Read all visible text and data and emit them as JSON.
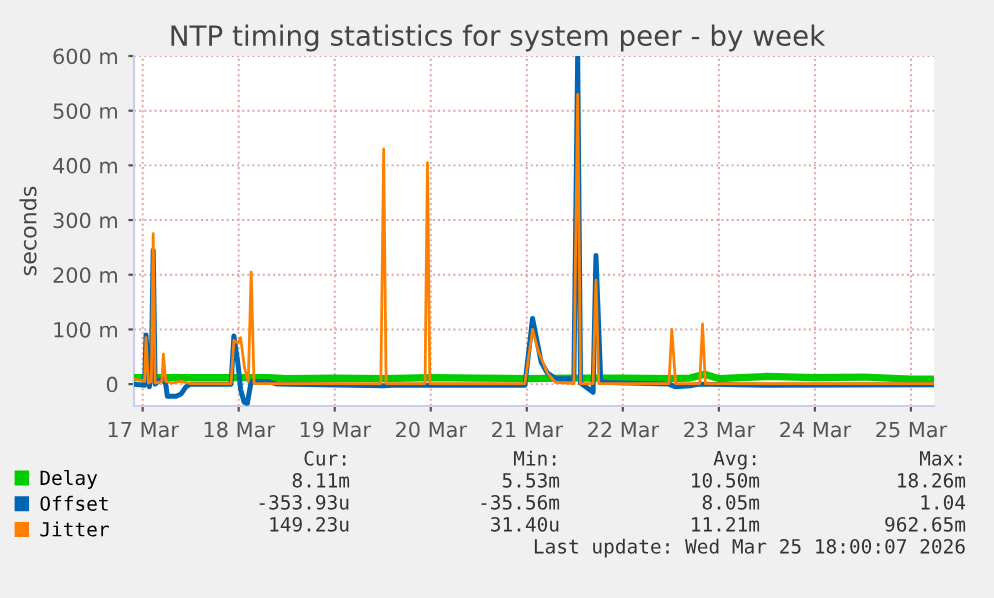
{
  "chart_data": {
    "type": "line",
    "title": "NTP timing statistics for system peer - by week",
    "ylabel": "seconds",
    "xlim": [
      "2026-03-16T21:50",
      "2026-03-25T05:46"
    ],
    "xticks": [
      {
        "value": "2026-03-17",
        "label": "17 Mar"
      },
      {
        "value": "2026-03-18",
        "label": "18 Mar"
      },
      {
        "value": "2026-03-19",
        "label": "19 Mar"
      },
      {
        "value": "2026-03-20",
        "label": "20 Mar"
      },
      {
        "value": "2026-03-21",
        "label": "21 Mar"
      },
      {
        "value": "2026-03-22",
        "label": "22 Mar"
      },
      {
        "value": "2026-03-23",
        "label": "23 Mar"
      },
      {
        "value": "2026-03-24",
        "label": "24 Mar"
      },
      {
        "value": "2026-03-25",
        "label": "25 Mar"
      }
    ],
    "ylim": [
      -40,
      600
    ],
    "yticks": [
      0,
      {
        "value": 100,
        "label": "100 m"
      },
      {
        "value": 200,
        "label": "200 m"
      },
      {
        "value": 300,
        "label": "300 m"
      },
      {
        "value": 400,
        "label": "400 m"
      },
      {
        "value": 500,
        "label": "500 m"
      },
      {
        "value": 600,
        "label": "600 m"
      }
    ],
    "grid": true,
    "legend": "bottom",
    "series": [
      {
        "name": "Delay",
        "color": "#00cc00",
        "x": [
          "2026-03-16T21:50",
          "2026-03-17T12:00",
          "2026-03-18T07:12",
          "2026-03-18T12:00",
          "2026-03-19T00:00",
          "2026-03-19T12:00",
          "2026-03-20T00:00",
          "2026-03-20T12:00",
          "2026-03-21T00:00",
          "2026-03-21T12:00",
          "2026-03-22T00:00",
          "2026-03-22T12:00",
          "2026-03-22T16:48",
          "2026-03-22T20:24",
          "2026-03-23T00:00",
          "2026-03-23T12:00",
          "2026-03-24T00:00",
          "2026-03-24T12:00",
          "2026-03-25T00:00",
          "2026-03-25T05:46"
        ],
        "values": [
          12,
          12,
          12,
          10,
          11,
          10,
          12,
          11,
          10,
          11,
          11,
          10,
          11,
          18,
          10,
          14,
          12,
          13,
          9,
          9
        ]
      },
      {
        "name": "Offset",
        "color": "#0066b3",
        "x": [
          "2026-03-16T21:50",
          "2026-03-17T00:29",
          "2026-03-17T00:50",
          "2026-03-17T01:41",
          "2026-03-17T02:10",
          "2026-03-17T02:38",
          "2026-03-17T03:07",
          "2026-03-17T04:48",
          "2026-03-17T05:46",
          "2026-03-17T06:10",
          "2026-03-17T08:24",
          "2026-03-17T09:36",
          "2026-03-17T10:48",
          "2026-03-17T12:00",
          "2026-03-17T22:05",
          "2026-03-17T22:48",
          "2026-03-17T23:46",
          "2026-03-18T00:29",
          "2026-03-18T01:21",
          "2026-03-18T02:10",
          "2026-03-18T03:07",
          "2026-03-18T07:12",
          "2026-03-18T09:36",
          "2026-03-19T12:00",
          "2026-03-19T14:24",
          "2026-03-20T23:31",
          "2026-03-21T01:26",
          "2026-03-21T03:36",
          "2026-03-21T05:10",
          "2026-03-21T07:12",
          "2026-03-21T11:46",
          "2026-03-21T12:43",
          "2026-03-21T13:26",
          "2026-03-21T16:34",
          "2026-03-21T17:17",
          "2026-03-21T18:29",
          "2026-03-21T20:24",
          "2026-03-22T11:31",
          "2026-03-22T13:12",
          "2026-03-22T16:48",
          "2026-03-22T19:12",
          "2026-03-23T12:00",
          "2026-03-25T05:46"
        ],
        "values": [
          0,
          -2,
          90,
          -5,
          30,
          245,
          0,
          10,
          0,
          -22,
          -22,
          -18,
          -5,
          0,
          0,
          88,
          40,
          -10,
          -33,
          -35,
          5,
          5,
          0,
          -3,
          -2,
          -2,
          120,
          40,
          20,
          10,
          10,
          600,
          2,
          -15,
          235,
          5,
          3,
          0,
          -5,
          -3,
          0,
          -2,
          -1
        ]
      },
      {
        "name": "Jitter",
        "color": "#ff8000",
        "x": [
          "2026-03-16T21:50",
          "2026-03-17T00:29",
          "2026-03-17T00:50",
          "2026-03-17T01:26",
          "2026-03-17T02:10",
          "2026-03-17T02:38",
          "2026-03-17T03:07",
          "2026-03-17T04:48",
          "2026-03-17T05:10",
          "2026-03-17T05:46",
          "2026-03-17T07:12",
          "2026-03-17T09:36",
          "2026-03-17T12:00",
          "2026-03-17T22:05",
          "2026-03-17T22:48",
          "2026-03-17T23:46",
          "2026-03-18T00:29",
          "2026-03-18T01:26",
          "2026-03-18T02:24",
          "2026-03-18T03:07",
          "2026-03-18T03:50",
          "2026-03-19T11:31",
          "2026-03-19T12:14",
          "2026-03-19T12:50",
          "2026-03-19T22:34",
          "2026-03-19T23:10",
          "2026-03-19T23:46",
          "2026-03-20T23:31",
          "2026-03-21T01:26",
          "2026-03-21T02:53",
          "2026-03-21T05:10",
          "2026-03-21T07:12",
          "2026-03-21T11:46",
          "2026-03-21T12:43",
          "2026-03-21T13:26",
          "2026-03-21T16:34",
          "2026-03-21T17:17",
          "2026-03-21T18:00",
          "2026-03-22T11:31",
          "2026-03-22T12:14",
          "2026-03-22T13:12",
          "2026-03-22T19:12",
          "2026-03-22T19:55",
          "2026-03-22T20:38",
          "2026-03-25T05:46"
        ],
        "values": [
          10,
          5,
          85,
          2,
          5,
          275,
          2,
          5,
          55,
          5,
          2,
          5,
          1,
          1,
          80,
          75,
          85,
          30,
          5,
          205,
          1,
          1,
          430,
          1,
          1,
          405,
          1,
          1,
          100,
          60,
          20,
          3,
          1,
          530,
          1,
          1,
          190,
          1,
          1,
          100,
          1,
          1,
          110,
          1,
          1
        ]
      }
    ],
    "annotations": [
      "Cur:",
      "Min:",
      "Avg:",
      "Max:",
      "8.11m",
      "5.53m",
      "10.50m",
      "18.26m",
      "-353.93u",
      "-35.56m",
      "8.05m",
      "1.04",
      "149.23u",
      "31.40u",
      "11.21m",
      "962.65m",
      "Last update: Wed Mar 25 18:00:07 2026"
    ]
  }
}
